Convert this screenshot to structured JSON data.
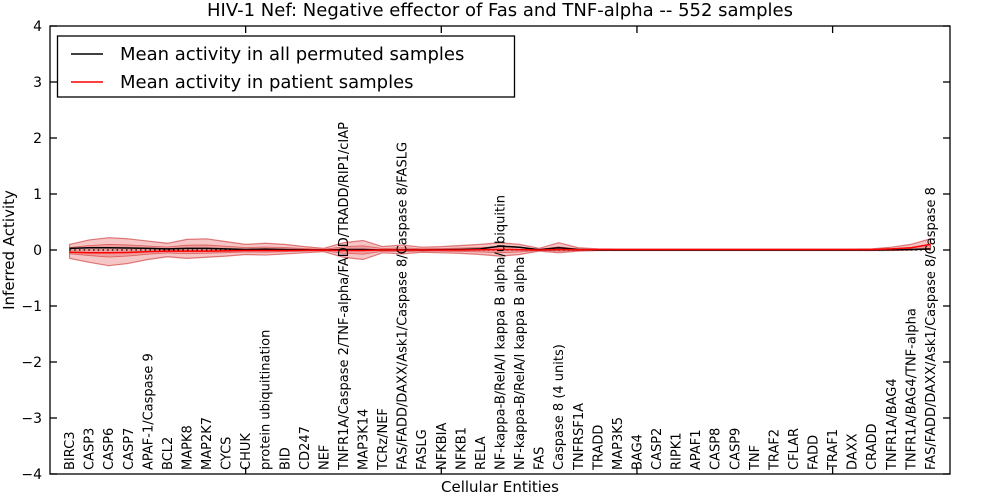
{
  "title": "HIV-1 Nef: Negative effector of Fas and TNF-alpha -- 552 samples",
  "axes": {
    "ylabel": "Inferred Activity",
    "xlabel": "Cellular Entities",
    "ytick_labels": [
      "4",
      "3",
      "2",
      "1",
      "0",
      "−1",
      "−2",
      "−3",
      "−4"
    ],
    "ytick_values": [
      4,
      3,
      2,
      1,
      0,
      -1,
      -2,
      -3,
      -4
    ],
    "xtick_major_positions": [
      10,
      20,
      30,
      40
    ]
  },
  "legend": {
    "items": [
      {
        "label": "Mean activity in all permuted samples",
        "color": "#000000"
      },
      {
        "label": "Mean activity in patient samples",
        "color": "#ff0000"
      }
    ]
  },
  "colors": {
    "permuted_line": "#000000",
    "patient_line": "#ff0000",
    "band_fill": "rgba(222,45,45,0.27)",
    "band_edge": "rgba(200,30,30,0.55)",
    "zero_line": "#000000",
    "frame": "#000000"
  },
  "chart_data": {
    "type": "area",
    "title": "HIV-1 Nef: Negative effector of Fas and TNF-alpha -- 552 samples",
    "xlabel": "Cellular Entities",
    "ylabel": "Inferred Activity",
    "ylim": [
      -4,
      4
    ],
    "grid": false,
    "legend_position": "upper left",
    "zero_line_style": "dotted",
    "categories": [
      "BIRC3",
      "CASP3",
      "CASP6",
      "CASP7",
      "APAF-1/Caspase 9",
      "BCL2",
      "MAPK8",
      "MAP2K7",
      "CYCS",
      "CHUK",
      "protein ubiquitination",
      "BID",
      "CD247",
      "NEF",
      "TNFR1A/Caspase 2/TNF-alpha/FADD/TRADD/RIP1/cIAP",
      "MAP3K14",
      "TCRz/NEF",
      "FAS/FADD/DAXX/Ask1/Caspase 8/Caspase 8/FASLG",
      "FASLG",
      "NFKBIA",
      "NFKB1",
      "RELA",
      "NF-kappa-B/RelA/I kappa B alpha/ubiquitin",
      "NF-kappa-B/RelA/I kappa B alpha",
      "FAS",
      "Caspase 8 (4 units)",
      "TNFRSF1A",
      "TRADD",
      "MAP3K5",
      "BAG4",
      "CASP2",
      "RIPK1",
      "APAF1",
      "CASP8",
      "CASP9",
      "TNF",
      "TRAF2",
      "CFLAR",
      "FADD",
      "TRAF1",
      "DAXX",
      "CRADD",
      "TNFR1A/BAG4",
      "TNFR1A/BAG4/TNF-alpha",
      "FAS/FADD/DAXX/Ask1/Caspase 8/Caspase 8"
    ],
    "series": [
      {
        "name": "Mean activity in all permuted samples",
        "color": "#000000",
        "values": [
          0.03,
          0.04,
          0.04,
          0.035,
          0.03,
          0.02,
          0.03,
          0.03,
          0.02,
          0.01,
          0.015,
          0.01,
          0.005,
          0.0,
          0.01,
          0.01,
          0.0,
          0.005,
          0.0,
          0.005,
          0.01,
          0.02,
          0.07,
          0.05,
          0.005,
          0.04,
          0.01,
          0.0,
          0.0,
          0.0,
          0.0,
          0.0,
          0.0,
          0.0,
          0.0,
          0.0,
          0.0,
          0.0,
          0.0,
          0.0,
          0.0,
          0.0,
          0.005,
          0.01,
          0.02
        ]
      },
      {
        "name": "Mean activity in patient samples",
        "color": "#ff0000",
        "values": [
          -0.04,
          -0.05,
          -0.05,
          -0.045,
          -0.03,
          -0.02,
          -0.02,
          -0.02,
          -0.015,
          -0.01,
          -0.01,
          -0.01,
          -0.005,
          0.0,
          -0.01,
          -0.01,
          0.0,
          0.0,
          0.0,
          0.0,
          0.0,
          0.005,
          0.01,
          0.005,
          0.0,
          0.01,
          0.005,
          0.01,
          0.01,
          0.01,
          0.01,
          0.01,
          0.01,
          0.01,
          0.01,
          0.01,
          0.01,
          0.01,
          0.01,
          0.01,
          0.01,
          0.01,
          0.02,
          0.04,
          0.1
        ]
      }
    ],
    "band_upper": [
      0.1,
      0.18,
      0.22,
      0.2,
      0.16,
      0.12,
      0.19,
      0.2,
      0.15,
      0.1,
      0.12,
      0.1,
      0.06,
      0.03,
      0.13,
      0.17,
      0.06,
      0.09,
      0.05,
      0.06,
      0.08,
      0.1,
      0.13,
      0.1,
      0.03,
      0.13,
      0.04,
      0.02,
      0.015,
      0.015,
      0.015,
      0.015,
      0.015,
      0.015,
      0.015,
      0.015,
      0.015,
      0.015,
      0.015,
      0.015,
      0.015,
      0.02,
      0.05,
      0.1,
      0.2
    ],
    "band_lower": [
      -0.15,
      -0.22,
      -0.28,
      -0.24,
      -0.17,
      -0.12,
      -0.15,
      -0.13,
      -0.11,
      -0.08,
      -0.09,
      -0.07,
      -0.05,
      -0.03,
      -0.13,
      -0.17,
      -0.05,
      -0.07,
      -0.04,
      -0.05,
      -0.06,
      -0.08,
      -0.11,
      -0.08,
      -0.02,
      -0.05,
      -0.02,
      -0.01,
      -0.01,
      -0.01,
      -0.01,
      -0.01,
      -0.01,
      -0.01,
      -0.01,
      -0.01,
      -0.01,
      -0.01,
      -0.01,
      -0.01,
      -0.01,
      -0.01,
      -0.01,
      0.0,
      0.02
    ],
    "inner_band_scale": 0.45
  }
}
